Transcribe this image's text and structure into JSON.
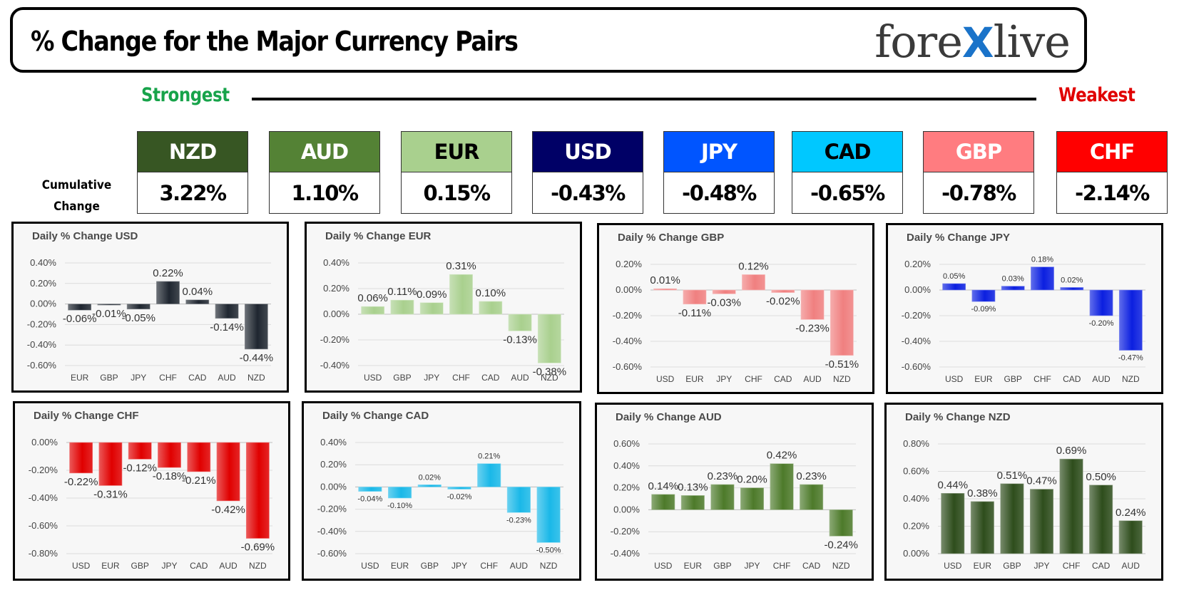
{
  "header": {
    "title": "% Change for the Major Currency Pairs",
    "logo_left": "fore",
    "logo_x": "X",
    "logo_right": "live",
    "strongest_label": "Strongest",
    "weakest_label": "Weakest",
    "cumulative_label_line1": "Cumulative",
    "cumulative_label_line2": "Change"
  },
  "ranking": [
    {
      "currency": "NZD",
      "value": "3.22%",
      "bg": "#375623",
      "fg": "#ffffff"
    },
    {
      "currency": "AUD",
      "value": "1.10%",
      "bg": "#548235",
      "fg": "#ffffff"
    },
    {
      "currency": "EUR",
      "value": "0.15%",
      "bg": "#a9d08e",
      "fg": "#000000"
    },
    {
      "currency": "USD",
      "value": "-0.43%",
      "bg": "#000066",
      "fg": "#ffffff"
    },
    {
      "currency": "JPY",
      "value": "-0.48%",
      "bg": "#0055ff",
      "fg": "#ffffff"
    },
    {
      "currency": "CAD",
      "value": "-0.65%",
      "bg": "#00c8ff",
      "fg": "#000000"
    },
    {
      "currency": "GBP",
      "value": "-0.78%",
      "bg": "#ff7c80",
      "fg": "#ffffff"
    },
    {
      "currency": "CHF",
      "value": "-2.14%",
      "bg": "#ff0000",
      "fg": "#ffffff"
    }
  ],
  "chart_data": [
    {
      "type": "bar",
      "title": "Daily % Change USD",
      "color": "#1f2630",
      "categories": [
        "EUR",
        "GBP",
        "JPY",
        "CHF",
        "CAD",
        "AUD",
        "NZD"
      ],
      "values": [
        -0.06,
        -0.01,
        -0.05,
        0.22,
        0.04,
        -0.14,
        -0.44
      ],
      "labels": [
        "-0.06%",
        "-0.01%",
        "-0.05%",
        "0.22%",
        "0.04%",
        "-0.14%",
        "-0.44%"
      ],
      "yticks": [
        0.4,
        0.2,
        0.0,
        -0.2,
        -0.4,
        -0.6
      ],
      "ytick_labels": [
        "0.40%",
        "0.20%",
        "0.00%",
        "-0.20%",
        "-0.40%",
        "-0.60%"
      ],
      "ylim": [
        -0.6,
        0.4
      ],
      "label_size": 15
    },
    {
      "type": "bar",
      "title": "Daily % Change EUR",
      "color": "#a9d08e",
      "categories": [
        "USD",
        "GBP",
        "JPY",
        "CHF",
        "CAD",
        "AUD",
        "NZD"
      ],
      "values": [
        0.06,
        0.11,
        0.09,
        0.31,
        0.1,
        -0.13,
        -0.38
      ],
      "labels": [
        "0.06%",
        "0.11%",
        "0.09%",
        "0.31%",
        "0.10%",
        "-0.13%",
        "-0.38%"
      ],
      "yticks": [
        0.4,
        0.2,
        0.0,
        -0.2,
        -0.4
      ],
      "ytick_labels": [
        "0.40%",
        "0.20%",
        "0.00%",
        "-0.20%",
        "-0.40%"
      ],
      "ylim": [
        -0.4,
        0.4
      ],
      "label_size": 15
    },
    {
      "type": "bar",
      "title": "Daily % Change GBP",
      "color": "#f08080",
      "categories": [
        "USD",
        "EUR",
        "JPY",
        "CHF",
        "CAD",
        "AUD",
        "NZD"
      ],
      "values": [
        0.01,
        -0.11,
        -0.03,
        0.12,
        -0.02,
        -0.23,
        -0.51
      ],
      "labels": [
        "0.01%",
        "-0.11%",
        "-0.03%",
        "0.12%",
        "-0.02%",
        "-0.23%",
        "-0.51%"
      ],
      "yticks": [
        0.2,
        0.0,
        -0.2,
        -0.4,
        -0.6
      ],
      "ytick_labels": [
        "0.20%",
        "0.00%",
        "-0.20%",
        "-0.40%",
        "-0.60%"
      ],
      "ylim": [
        -0.6,
        0.2
      ],
      "label_size": 15
    },
    {
      "type": "bar",
      "title": "Daily % Change JPY",
      "color": "#0b1fe0",
      "categories": [
        "USD",
        "EUR",
        "GBP",
        "CHF",
        "CAD",
        "AUD",
        "NZD"
      ],
      "values": [
        0.05,
        -0.09,
        0.03,
        0.18,
        0.02,
        -0.2,
        -0.47
      ],
      "labels": [
        "0.05%",
        "-0.09%",
        "0.03%",
        "0.18%",
        "0.02%",
        "-0.20%",
        "-0.47%"
      ],
      "yticks": [
        0.2,
        0.0,
        -0.2,
        -0.4,
        -0.6
      ],
      "ytick_labels": [
        "0.20%",
        "0.00%",
        "-0.20%",
        "-0.40%",
        "-0.60%"
      ],
      "ylim": [
        -0.6,
        0.2
      ],
      "label_size": 11
    },
    {
      "type": "bar",
      "title": "Daily % Change CHF",
      "color": "#e00000",
      "categories": [
        "USD",
        "EUR",
        "GBP",
        "JPY",
        "CAD",
        "AUD",
        "NZD"
      ],
      "values": [
        -0.22,
        -0.31,
        -0.12,
        -0.18,
        -0.21,
        -0.42,
        -0.69
      ],
      "labels": [
        "-0.22%",
        "-0.31%",
        "-0.12%",
        "-0.18%",
        "-0.21%",
        "-0.42%",
        "-0.69%"
      ],
      "yticks": [
        0.0,
        -0.2,
        -0.4,
        -0.6,
        -0.8
      ],
      "ytick_labels": [
        "0.00%",
        "-0.20%",
        "-0.40%",
        "-0.60%",
        "-0.80%"
      ],
      "ylim": [
        -0.8,
        0.0
      ],
      "label_size": 15
    },
    {
      "type": "bar",
      "title": "Daily % Change CAD",
      "color": "#1ab8e8",
      "categories": [
        "USD",
        "EUR",
        "GBP",
        "JPY",
        "CHF",
        "AUD",
        "NZD"
      ],
      "values": [
        -0.04,
        -0.1,
        0.02,
        -0.02,
        0.21,
        -0.23,
        -0.5
      ],
      "labels": [
        "-0.04%",
        "-0.10%",
        "0.02%",
        "-0.02%",
        "0.21%",
        "-0.23%",
        "-0.50%"
      ],
      "yticks": [
        0.4,
        0.2,
        0.0,
        -0.2,
        -0.4,
        -0.6
      ],
      "ytick_labels": [
        "0.40%",
        "0.20%",
        "0.00%",
        "-0.20%",
        "-0.40%",
        "-0.60%"
      ],
      "ylim": [
        -0.6,
        0.4
      ],
      "label_size": 11
    },
    {
      "type": "bar",
      "title": "Daily % Change AUD",
      "color": "#4d7a2a",
      "categories": [
        "USD",
        "EUR",
        "GBP",
        "JPY",
        "CHF",
        "CAD",
        "NZD"
      ],
      "values": [
        0.14,
        0.13,
        0.23,
        0.2,
        0.42,
        0.23,
        -0.24
      ],
      "labels": [
        "0.14%",
        "0.13%",
        "0.23%",
        "0.20%",
        "0.42%",
        "0.23%",
        "-0.24%"
      ],
      "yticks": [
        0.6,
        0.4,
        0.2,
        0.0,
        -0.2,
        -0.4
      ],
      "ytick_labels": [
        "0.60%",
        "0.40%",
        "0.20%",
        "0.00%",
        "-0.20%",
        "-0.40%"
      ],
      "ylim": [
        -0.4,
        0.6
      ],
      "label_size": 15
    },
    {
      "type": "bar",
      "title": "Daily % Change NZD",
      "color": "#2e4d1c",
      "categories": [
        "USD",
        "EUR",
        "GBP",
        "JPY",
        "CHF",
        "CAD",
        "AUD"
      ],
      "values": [
        0.44,
        0.38,
        0.51,
        0.47,
        0.69,
        0.5,
        0.24
      ],
      "labels": [
        "0.44%",
        "0.38%",
        "0.51%",
        "0.47%",
        "0.69%",
        "0.50%",
        "0.24%"
      ],
      "yticks": [
        0.8,
        0.6,
        0.4,
        0.2,
        0.0
      ],
      "ytick_labels": [
        "0.80%",
        "0.60%",
        "0.40%",
        "0.20%",
        "0.00%"
      ],
      "ylim": [
        0.0,
        0.8
      ],
      "label_size": 15
    }
  ]
}
